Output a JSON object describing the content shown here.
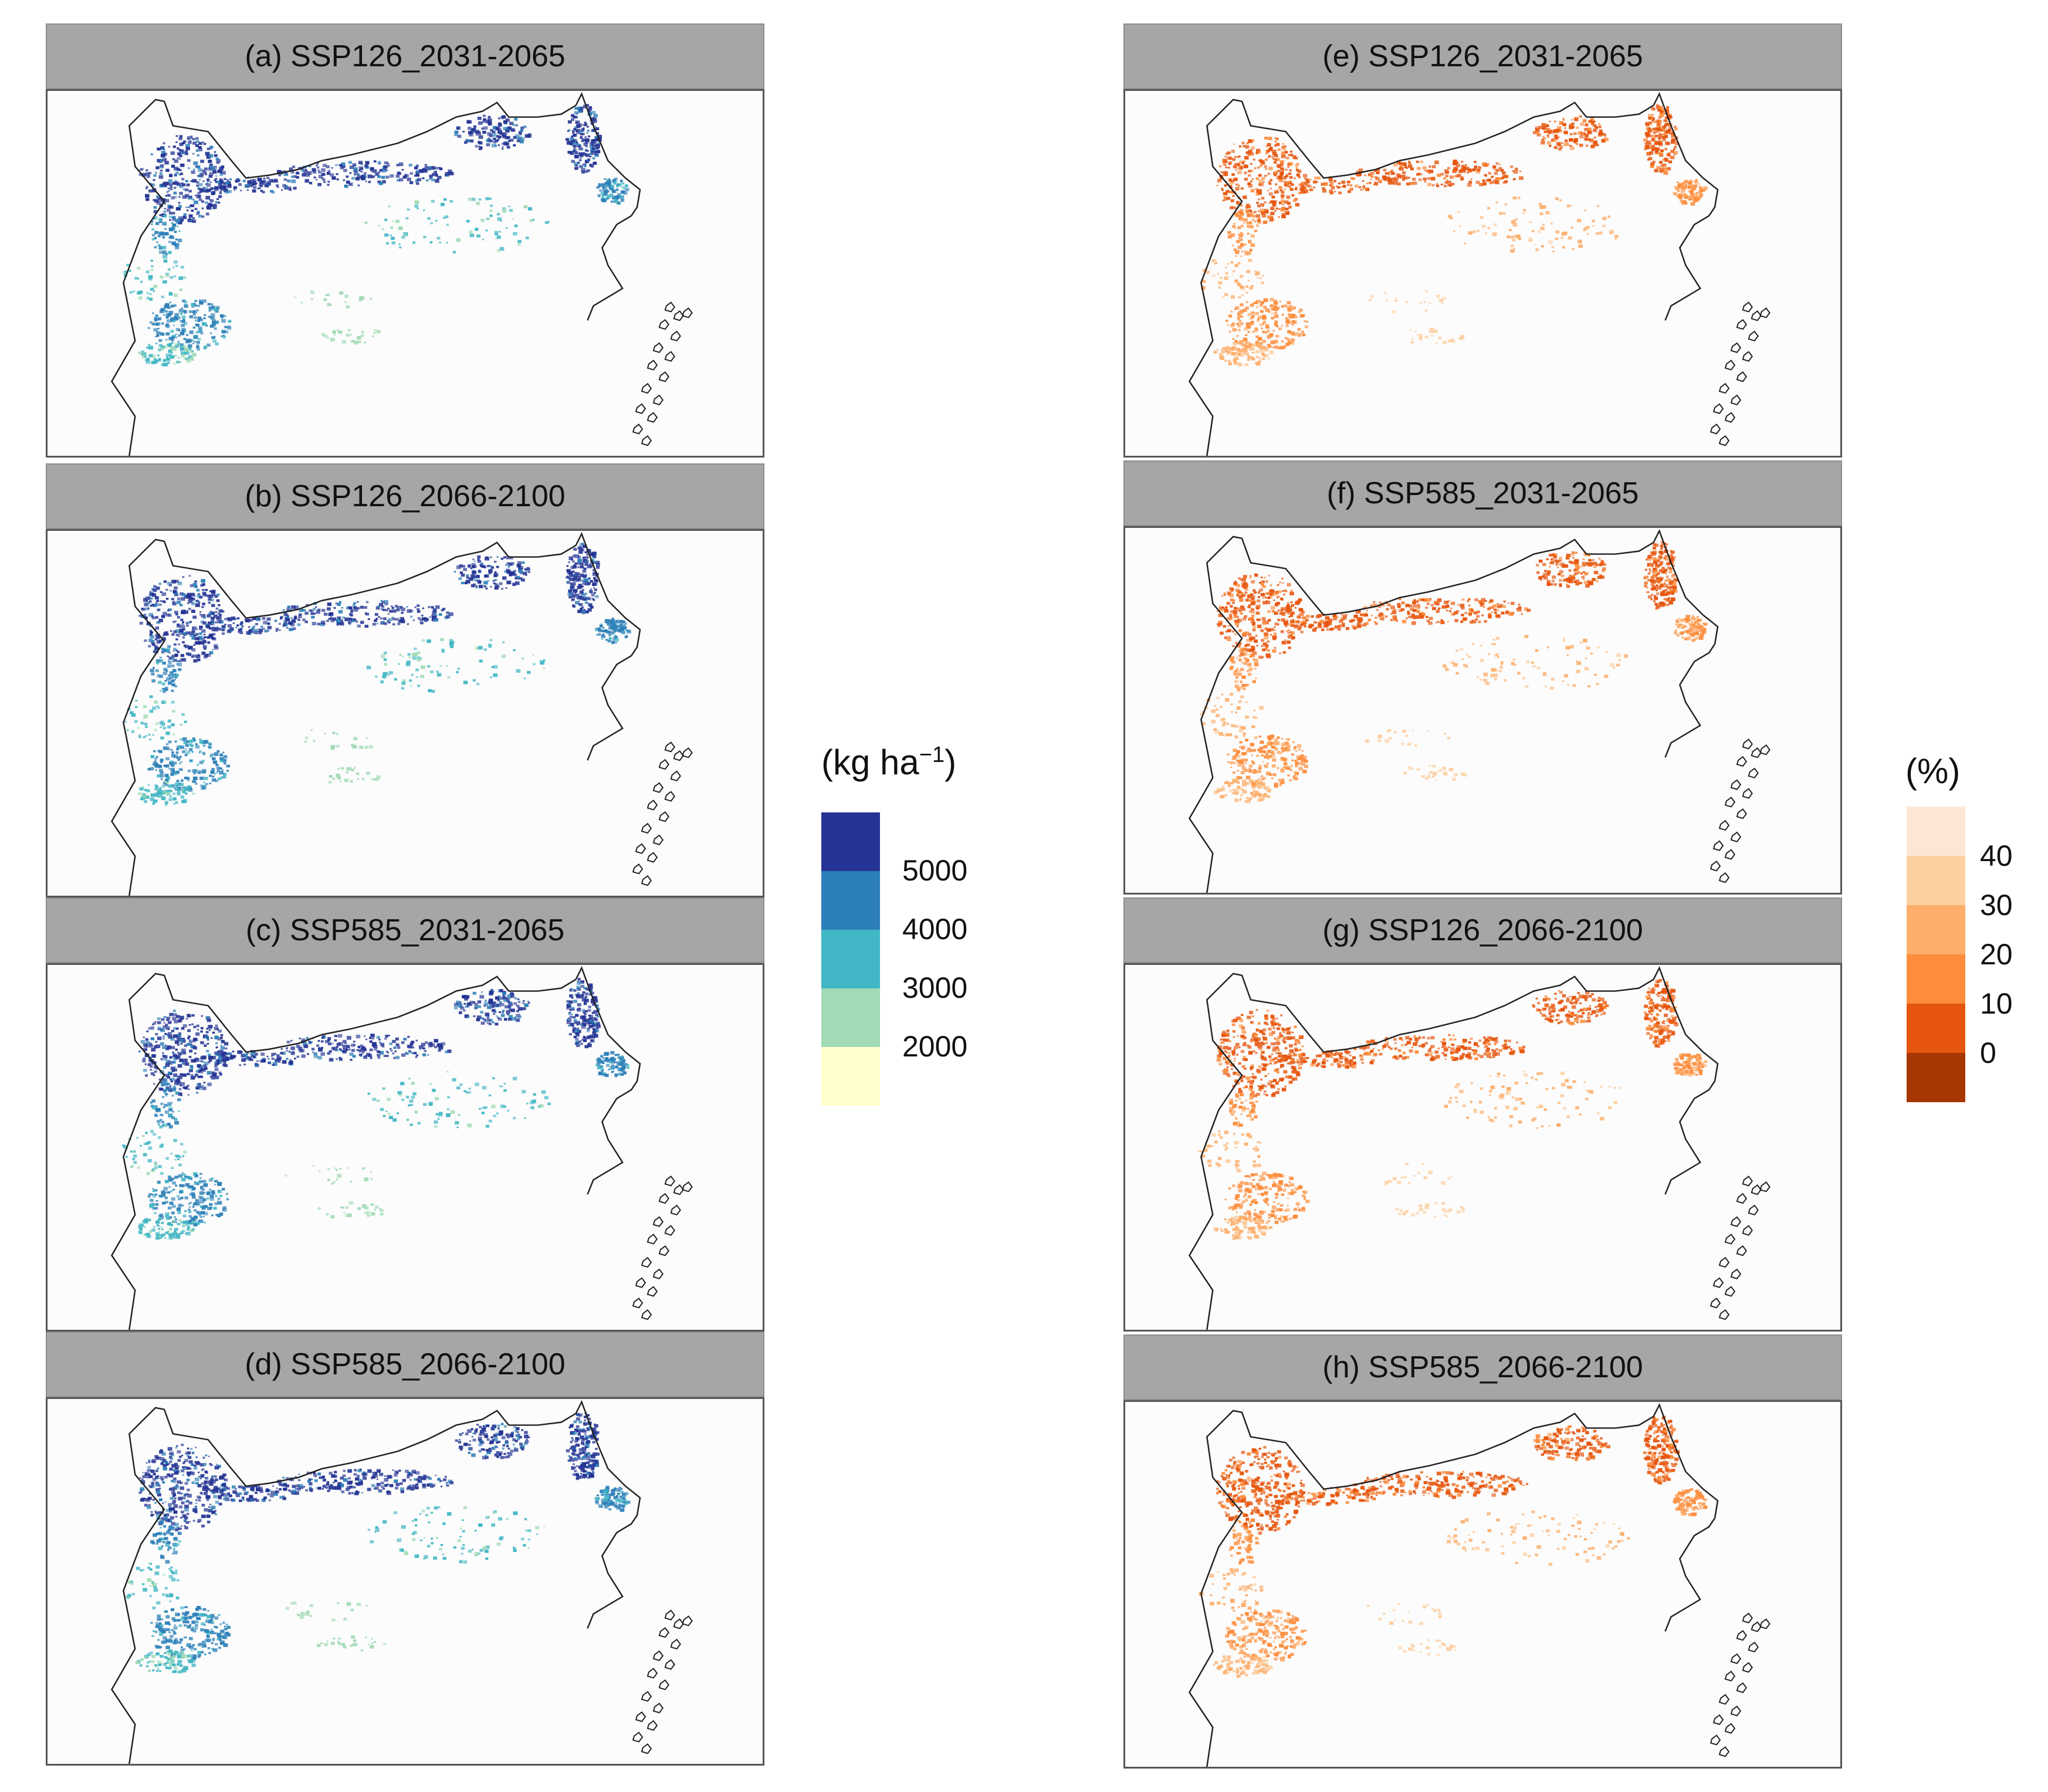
{
  "panels": [
    {
      "id": "a",
      "title": "(a) SSP126_2031-2065",
      "palette": "blue"
    },
    {
      "id": "b",
      "title": "(b) SSP126_2066-2100",
      "palette": "blue"
    },
    {
      "id": "c",
      "title": "(c) SSP585_2031-2065",
      "palette": "blue"
    },
    {
      "id": "d",
      "title": "(d) SSP585_2066-2100",
      "palette": "blue"
    },
    {
      "id": "e",
      "title": "(e) SSP126_2031-2065",
      "palette": "orange"
    },
    {
      "id": "f",
      "title": "(f) SSP585_2031-2065",
      "palette": "orange"
    },
    {
      "id": "g",
      "title": "(g) SSP126_2066-2100",
      "palette": "orange"
    },
    {
      "id": "h",
      "title": "(h) SSP585_2066-2100",
      "palette": "orange"
    }
  ],
  "legend_yield": {
    "title_main": "(kg ha",
    "title_sup": "−1",
    "title_end": ")",
    "labels": [
      "5000",
      "4000",
      "3000",
      "2000"
    ],
    "colors": [
      "#253494",
      "#2c7fb8",
      "#41b6c4",
      "#a1dab4",
      "#ffffcc"
    ]
  },
  "legend_percent": {
    "title": "(%)",
    "labels": [
      "40",
      "30",
      "20",
      "10",
      "0"
    ],
    "colors": [
      "#fee6d6",
      "#fdd0a2",
      "#fdae6b",
      "#fd8d3c",
      "#e6550d",
      "#a63603"
    ]
  },
  "chart_data": {
    "type": "map",
    "legend_yield_breaks": [
      5000,
      4000,
      3000,
      2000
    ],
    "legend_percent_breaks": [
      40,
      30,
      20,
      10,
      0
    ]
  }
}
